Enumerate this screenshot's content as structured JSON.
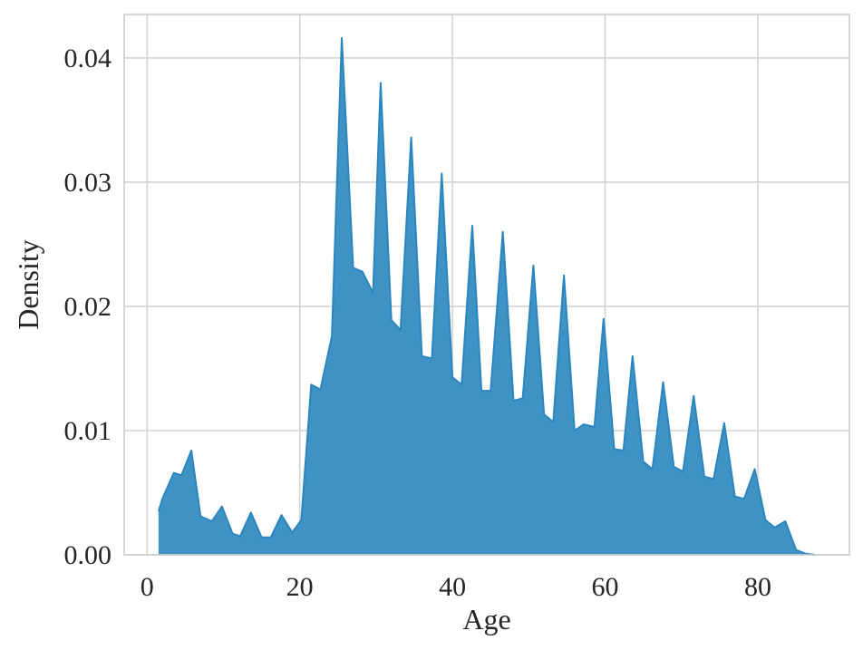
{
  "colors": {
    "fill": "#3f93c4",
    "line": "#2b86bf",
    "grid": "#d3d3d3",
    "frame": "#cccccc",
    "text": "#262626"
  },
  "chart_data": {
    "type": "area",
    "title": "",
    "xlabel": "Age",
    "ylabel": "Density",
    "xlim": [
      -3,
      92
    ],
    "ylim": [
      0,
      0.0435
    ],
    "grid": true,
    "legend": null,
    "xticks": [
      0,
      20,
      40,
      60,
      80
    ],
    "xtick_labels": [
      "0",
      "20",
      "40",
      "60",
      "80"
    ],
    "yticks": [
      0,
      0.01,
      0.02,
      0.03,
      0.04
    ],
    "ytick_labels": [
      "0.00",
      "0.01",
      "0.02",
      "0.03",
      "0.04"
    ],
    "series": [
      {
        "x": [
          1.5,
          2.0,
          3.5,
          4.5,
          5.8,
          7.0,
          8.5,
          9.8,
          11.2,
          12.2,
          13.6,
          15.0,
          16.2,
          17.6,
          19.0,
          20.2,
          21.5,
          22.7,
          24.2,
          25.5,
          27.0,
          28.2,
          29.6,
          30.6,
          32.0,
          33.2,
          34.6,
          36.0,
          37.3,
          38.6,
          40.0,
          41.2,
          42.6,
          43.8,
          45.0,
          46.6,
          48.0,
          49.2,
          50.6,
          52.0,
          53.2,
          54.6,
          56.0,
          57.2,
          58.6,
          59.8,
          61.2,
          62.4,
          63.6,
          65.0,
          66.2,
          67.6,
          69.0,
          70.2,
          71.6,
          73.0,
          74.2,
          75.6,
          77.0,
          78.2,
          79.6,
          81.0,
          82.2,
          83.6,
          85.0,
          86.2,
          87.5
        ],
        "y": [
          0.0035,
          0.0045,
          0.0066,
          0.0064,
          0.0084,
          0.0031,
          0.0027,
          0.0039,
          0.0017,
          0.0015,
          0.0034,
          0.0014,
          0.0014,
          0.0032,
          0.0018,
          0.0028,
          0.0137,
          0.0133,
          0.0176,
          0.0416,
          0.0231,
          0.0228,
          0.0211,
          0.038,
          0.0189,
          0.0181,
          0.0336,
          0.016,
          0.0158,
          0.0307,
          0.0143,
          0.0137,
          0.0265,
          0.0132,
          0.0132,
          0.026,
          0.0124,
          0.0126,
          0.0233,
          0.0113,
          0.0107,
          0.0225,
          0.01,
          0.0105,
          0.0103,
          0.019,
          0.0085,
          0.0084,
          0.016,
          0.0075,
          0.0069,
          0.0139,
          0.0071,
          0.0067,
          0.0128,
          0.0063,
          0.0061,
          0.0106,
          0.0047,
          0.0045,
          0.0069,
          0.0028,
          0.0022,
          0.0027,
          0.0004,
          0.0001,
          0.0
        ]
      }
    ]
  }
}
